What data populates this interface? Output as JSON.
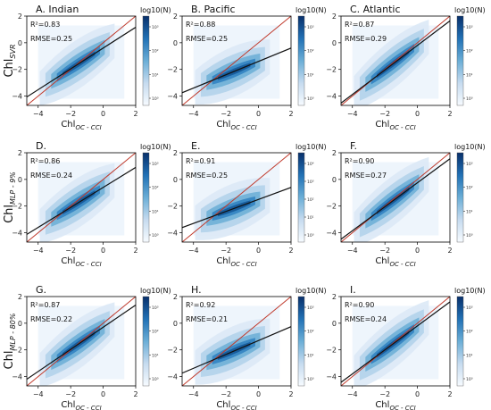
{
  "figure": {
    "row_labels": [
      {
        "main": "Chl",
        "sub": "SVR"
      },
      {
        "main": "Chl",
        "sub": "MLP - 9%"
      },
      {
        "main": "Chl",
        "sub": "MLP - 80%"
      }
    ],
    "xlabel": {
      "main": "Chl",
      "sub": "OC - CCI"
    },
    "colorbar": {
      "label": "log10(N)",
      "tick_labels": [
        "10⁰",
        "10¹",
        "10²",
        "10³"
      ],
      "tick_labels_4": [
        "10⁰",
        "10¹",
        "10²",
        "10³",
        "10⁴"
      ],
      "light": "#f7fbff",
      "dark": "#08306b"
    },
    "colors": {
      "one_to_one_line": "#c0392b",
      "regression_line": "#111111",
      "density_mid": "#2171b5"
    }
  },
  "chart_data": [
    {
      "type": "scatter",
      "density": true,
      "title": "A. Indian",
      "r2_text": "R²=0.83",
      "rmse_text": "RMSE=0.25",
      "xlim": [
        -4.7,
        2
      ],
      "ylim": [
        -4.7,
        2
      ],
      "xticks": [
        -4,
        -2,
        0,
        2
      ],
      "yticks": [
        -4,
        -2,
        0,
        2
      ],
      "regression": {
        "slope": 0.78,
        "intercept": -0.4
      },
      "one_to_one": true,
      "colorbar_max_exp": 3
    },
    {
      "type": "scatter",
      "density": true,
      "title": "B. Pacific",
      "r2_text": "R²=0.88",
      "rmse_text": "RMSE=0.25",
      "xlim": [
        -4.7,
        2
      ],
      "ylim": [
        -4.7,
        2
      ],
      "xticks": [
        -4,
        -2,
        0,
        2
      ],
      "yticks": [
        -4,
        -2,
        0,
        2
      ],
      "regression": {
        "slope": 0.5,
        "intercept": -1.4
      },
      "one_to_one": true,
      "colorbar_max_exp": 3
    },
    {
      "type": "scatter",
      "density": true,
      "title": "C. Atlantic",
      "r2_text": "R²=0.87",
      "rmse_text": "RMSE=0.29",
      "xlim": [
        -4.7,
        2
      ],
      "ylim": [
        -4.7,
        2
      ],
      "xticks": [
        -4,
        -2,
        0,
        2
      ],
      "yticks": [
        -4,
        -2,
        0,
        2
      ],
      "regression": {
        "slope": 0.92,
        "intercept": -0.2
      },
      "one_to_one": true,
      "colorbar_max_exp": 3
    },
    {
      "type": "scatter",
      "density": true,
      "title": "D.",
      "r2_text": "R²=0.86",
      "rmse_text": "RMSE=0.24",
      "xlim": [
        -4.7,
        2
      ],
      "ylim": [
        -4.7,
        2
      ],
      "xticks": [
        -4,
        -2,
        0,
        2
      ],
      "yticks": [
        -4,
        -2,
        0,
        2
      ],
      "regression": {
        "slope": 0.75,
        "intercept": -0.6
      },
      "one_to_one": true,
      "colorbar_max_exp": 3
    },
    {
      "type": "scatter",
      "density": true,
      "title": "E.",
      "r2_text": "R²=0.91",
      "rmse_text": "RMSE=0.25",
      "xlim": [
        -4.7,
        2
      ],
      "ylim": [
        -4.7,
        2
      ],
      "xticks": [
        -4,
        -2,
        0,
        2
      ],
      "yticks": [
        -4,
        -2,
        0,
        2
      ],
      "regression": {
        "slope": 0.45,
        "intercept": -1.5
      },
      "one_to_one": true,
      "colorbar_max_exp": 4
    },
    {
      "type": "scatter",
      "density": true,
      "title": "F.",
      "r2_text": "R²=0.90",
      "rmse_text": "RMSE=0.27",
      "xlim": [
        -4.7,
        2
      ],
      "ylim": [
        -4.7,
        2
      ],
      "xticks": [
        -4,
        -2,
        0,
        2
      ],
      "yticks": [
        -4,
        -2,
        0,
        2
      ],
      "regression": {
        "slope": 0.9,
        "intercept": -0.25
      },
      "one_to_one": true,
      "colorbar_max_exp": 3
    },
    {
      "type": "scatter",
      "density": true,
      "title": "G.",
      "r2_text": "R²=0.87",
      "rmse_text": "RMSE=0.22",
      "xlim": [
        -4.7,
        2
      ],
      "ylim": [
        -4.7,
        2
      ],
      "xticks": [
        -4,
        -2,
        0,
        2
      ],
      "yticks": [
        -4,
        -2,
        0,
        2
      ],
      "regression": {
        "slope": 0.83,
        "intercept": -0.3
      },
      "one_to_one": true,
      "colorbar_max_exp": 3
    },
    {
      "type": "scatter",
      "density": true,
      "title": "H.",
      "r2_text": "R²=0.92",
      "rmse_text": "RMSE=0.21",
      "xlim": [
        -4.7,
        2
      ],
      "ylim": [
        -4.7,
        2
      ],
      "xticks": [
        -4,
        -2,
        0,
        2
      ],
      "yticks": [
        -4,
        -2,
        0,
        2
      ],
      "regression": {
        "slope": 0.52,
        "intercept": -1.3
      },
      "one_to_one": true,
      "colorbar_max_exp": 3
    },
    {
      "type": "scatter",
      "density": true,
      "title": "I.",
      "r2_text": "R²=0.90",
      "rmse_text": "RMSE=0.24",
      "xlim": [
        -4.7,
        2
      ],
      "ylim": [
        -4.7,
        2
      ],
      "xticks": [
        -4,
        -2,
        0,
        2
      ],
      "yticks": [
        -4,
        -2,
        0,
        2
      ],
      "regression": {
        "slope": 0.9,
        "intercept": -0.2
      },
      "one_to_one": true,
      "colorbar_max_exp": 3
    }
  ]
}
